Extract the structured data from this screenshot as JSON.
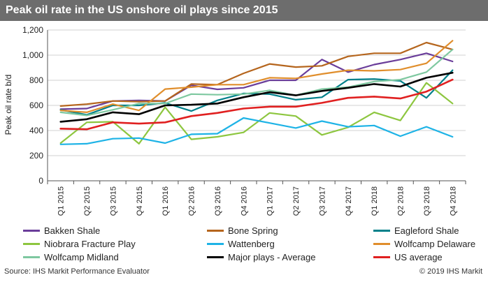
{
  "title": "Peak oil rate in the US onshore oil plays since 2015",
  "source": "Source: IHS Markit Performance Evaluator",
  "copyright": "© 2019 IHS Markit",
  "chart_data": {
    "type": "line",
    "title": "Peak oil rate in the US onshore oil plays since 2015",
    "ylabel": "Peak oil rate b/d",
    "xlabel": "",
    "ylim": [
      0,
      1200
    ],
    "yticks": [
      "0",
      "200",
      "400",
      "600",
      "800",
      "1,000",
      "1,200"
    ],
    "grid": true,
    "legend_position": "bottom",
    "categories": [
      "Q1 2015",
      "Q2 2015",
      "Q3 2015",
      "Q4 2015",
      "Q1 2016",
      "Q2 2016",
      "Q3 2016",
      "Q4 2016",
      "Q1 2017",
      "Q2 2017",
      "Q3 2017",
      "Q4 2017",
      "Q1 2018",
      "Q2 2018",
      "Q3 2018",
      "Q4 2018"
    ],
    "series": [
      {
        "name": "Bakken Shale",
        "color": "#6a3d9a",
        "values": [
          570,
          575,
          635,
          640,
          635,
          760,
          728,
          740,
          800,
          800,
          965,
          865,
          925,
          965,
          1015,
          950
        ]
      },
      {
        "name": "Bone Spring",
        "color": "#b5651d",
        "values": [
          595,
          610,
          635,
          630,
          635,
          770,
          765,
          855,
          930,
          905,
          915,
          990,
          1015,
          1015,
          1100,
          1045
        ]
      },
      {
        "name": "Eagleford Shale",
        "color": "#00808a",
        "values": [
          565,
          525,
          600,
          600,
          620,
          555,
          640,
          695,
          690,
          645,
          665,
          805,
          810,
          795,
          660,
          880
        ]
      },
      {
        "name": "Niobrara Fracture Play",
        "color": "#8dc63f",
        "values": [
          300,
          465,
          470,
          295,
          585,
          330,
          350,
          385,
          540,
          515,
          365,
          425,
          545,
          480,
          780,
          615
        ]
      },
      {
        "name": "Wattenberg",
        "color": "#1eb3e6",
        "values": [
          290,
          295,
          335,
          340,
          300,
          370,
          375,
          500,
          460,
          420,
          475,
          430,
          440,
          355,
          430,
          350
        ]
      },
      {
        "name": "Wolfcamp Delaware",
        "color": "#e08e2c",
        "values": [
          560,
          545,
          610,
          560,
          730,
          745,
          765,
          765,
          820,
          815,
          850,
          880,
          875,
          885,
          935,
          1115
        ]
      },
      {
        "name": "Wolfcamp Midland",
        "color": "#7ec8a0",
        "values": [
          545,
          520,
          565,
          615,
          615,
          690,
          685,
          690,
          720,
          680,
          730,
          745,
          790,
          805,
          865,
          1045
        ]
      },
      {
        "name": "Major plays - Average",
        "color": "#000000",
        "values": [
          470,
          490,
          545,
          530,
          600,
          605,
          615,
          665,
          705,
          680,
          715,
          740,
          770,
          750,
          820,
          860
        ]
      },
      {
        "name": "US average",
        "color": "#e02020",
        "values": [
          415,
          410,
          465,
          455,
          465,
          515,
          540,
          575,
          590,
          590,
          620,
          660,
          670,
          655,
          710,
          805
        ]
      }
    ]
  }
}
